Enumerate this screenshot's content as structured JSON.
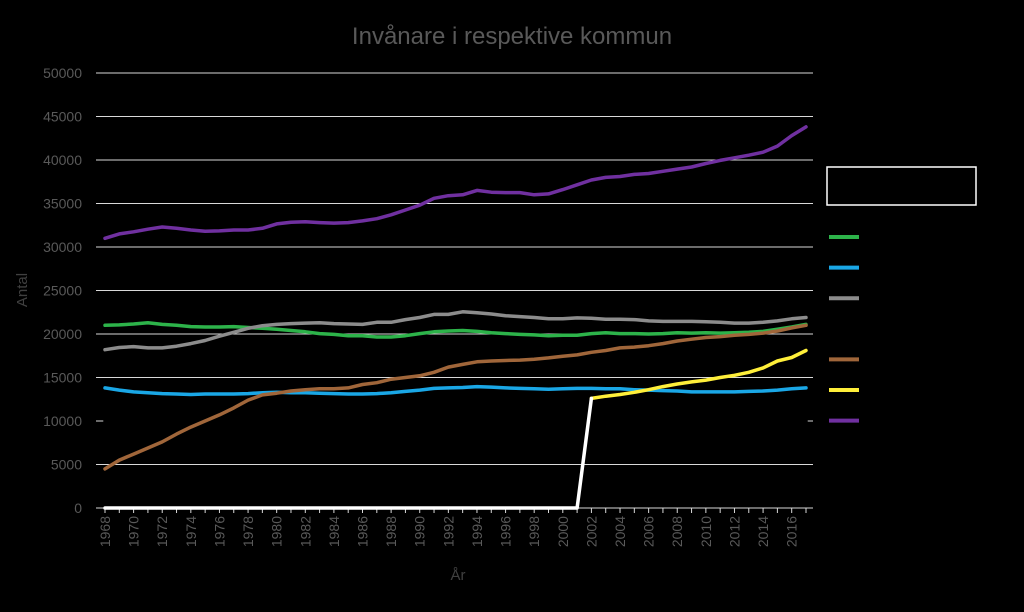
{
  "chart_data": {
    "type": "line",
    "title": "Invånare i respektive kommun",
    "xlabel": "År",
    "ylabel": "Antal",
    "ylim": [
      0,
      50000
    ],
    "yticks": [
      "0",
      "5000",
      "10000",
      "15000",
      "20000",
      "25000",
      "30000",
      "35000",
      "40000",
      "45000",
      "50000"
    ],
    "x": [
      1968,
      1969,
      1970,
      1971,
      1972,
      1973,
      1974,
      1975,
      1976,
      1977,
      1978,
      1979,
      1980,
      1981,
      1982,
      1983,
      1984,
      1985,
      1986,
      1987,
      1988,
      1989,
      1990,
      1991,
      1992,
      1993,
      1994,
      1995,
      1996,
      1997,
      1998,
      1999,
      2000,
      2001,
      2002,
      2003,
      2004,
      2005,
      2006,
      2007,
      2008,
      2009,
      2010,
      2011,
      2012,
      2013,
      2014,
      2015,
      2016,
      2017
    ],
    "xticks": [
      "1968",
      "1970",
      "1972",
      "1974",
      "1976",
      "1978",
      "1980",
      "1982",
      "1984",
      "1986",
      "1988",
      "1990",
      "1992",
      "1994",
      "1996",
      "1998",
      "2000",
      "2002",
      "2004",
      "2006",
      "2008",
      "2010",
      "2012",
      "2014",
      "2016"
    ],
    "grid": true,
    "legend_position": "right",
    "series": [
      {
        "color": "#2db34a",
        "values": [
          21000,
          21050,
          21150,
          21300,
          21100,
          21000,
          20850,
          20800,
          20800,
          20850,
          20750,
          20650,
          20550,
          20400,
          20250,
          20050,
          19950,
          19800,
          19800,
          19650,
          19650,
          19800,
          20050,
          20250,
          20350,
          20400,
          20300,
          20150,
          20050,
          19950,
          19900,
          19800,
          19850,
          19850,
          20050,
          20150,
          20050,
          20050,
          20000,
          20050,
          20150,
          20100,
          20150,
          20100,
          20150,
          20200,
          20300,
          20550,
          20800,
          21100
        ]
      },
      {
        "color": "#1aa7e6",
        "values": [
          13800,
          13550,
          13350,
          13250,
          13150,
          13100,
          13050,
          13100,
          13100,
          13100,
          13150,
          13250,
          13300,
          13250,
          13250,
          13200,
          13150,
          13100,
          13100,
          13150,
          13250,
          13400,
          13550,
          13750,
          13800,
          13850,
          13950,
          13900,
          13800,
          13750,
          13700,
          13650,
          13700,
          13750,
          13750,
          13700,
          13700,
          13600,
          13550,
          13500,
          13450,
          13350,
          13350,
          13350,
          13350,
          13400,
          13450,
          13550,
          13700,
          13800
        ]
      },
      {
        "color": "#8c8c8c",
        "values": [
          18200,
          18450,
          18550,
          18400,
          18400,
          18600,
          18900,
          19250,
          19750,
          20200,
          20650,
          20950,
          21100,
          21200,
          21250,
          21300,
          21200,
          21150,
          21100,
          21350,
          21350,
          21650,
          21900,
          22250,
          22250,
          22550,
          22450,
          22300,
          22100,
          22000,
          21900,
          21750,
          21750,
          21850,
          21800,
          21700,
          21700,
          21650,
          21500,
          21450,
          21450,
          21450,
          21400,
          21350,
          21250,
          21250,
          21350,
          21500,
          21750,
          21900
        ]
      },
      {
        "color": "#000000",
        "values": [
          10000,
          10000,
          10000,
          10000,
          10000,
          10000,
          10000,
          10000,
          10000,
          10000,
          10000,
          10000,
          10000,
          10000,
          10000,
          10000,
          10000,
          10000,
          10000,
          10000,
          10000,
          10000,
          10000,
          10000,
          10000,
          10000,
          10000,
          10000,
          10000,
          10000,
          10000,
          10000,
          10000,
          10000,
          10000,
          10000,
          10000,
          10000,
          10000,
          10000,
          10000,
          10000,
          10000,
          10000,
          10000,
          10000,
          10000,
          10000,
          10000,
          10000
        ]
      },
      {
        "color": "#a0663a",
        "values": [
          4500,
          5500,
          6200,
          6900,
          7600,
          8500,
          9300,
          10000,
          10700,
          11500,
          12400,
          13000,
          13200,
          13450,
          13600,
          13700,
          13700,
          13800,
          14200,
          14400,
          14800,
          15000,
          15200,
          15600,
          16200,
          16500,
          16800,
          16900,
          16950,
          17000,
          17100,
          17250,
          17450,
          17600,
          17900,
          18100,
          18400,
          18500,
          18650,
          18900,
          19200,
          19400,
          19600,
          19700,
          19850,
          19950,
          20100,
          20350,
          20700,
          21000
        ]
      },
      {
        "color": "#ffef3a",
        "values": [
          null,
          null,
          null,
          null,
          null,
          null,
          null,
          null,
          null,
          null,
          null,
          null,
          null,
          null,
          null,
          null,
          null,
          null,
          null,
          null,
          null,
          null,
          null,
          null,
          null,
          null,
          null,
          null,
          null,
          null,
          null,
          null,
          null,
          null,
          12600,
          12850,
          13050,
          13300,
          13600,
          13950,
          14250,
          14500,
          14700,
          15000,
          15250,
          15600,
          16100,
          16900,
          17300,
          18100
        ]
      },
      {
        "color": "#7030a0",
        "values": [
          31000,
          31500,
          31750,
          32050,
          32300,
          32150,
          31950,
          31800,
          31850,
          31950,
          31950,
          32150,
          32650,
          32850,
          32900,
          32800,
          32750,
          32800,
          33000,
          33250,
          33700,
          34250,
          34800,
          35600,
          35900,
          36000,
          36500,
          36300,
          36250,
          36250,
          36000,
          36100,
          36600,
          37150,
          37700,
          38000,
          38100,
          38350,
          38450,
          38700,
          38950,
          39200,
          39600,
          39950,
          40250,
          40550,
          40900,
          41600,
          42800,
          43800
        ]
      },
      {
        "color": "#ffffff",
        "values": [
          0,
          0,
          0,
          0,
          0,
          0,
          0,
          0,
          0,
          0,
          0,
          0,
          0,
          0,
          0,
          0,
          0,
          0,
          0,
          0,
          0,
          0,
          0,
          0,
          0,
          0,
          0,
          0,
          0,
          0,
          0,
          0,
          0,
          0,
          12600,
          null,
          null,
          null,
          null,
          null,
          null,
          null,
          null,
          null,
          null,
          null,
          null,
          null,
          null,
          null
        ]
      }
    ],
    "legend_swatches": [
      "#2db34a",
      "#1aa7e6",
      "#8c8c8c",
      "#000000",
      "#a0663a",
      "#ffef3a",
      "#7030a0"
    ]
  }
}
